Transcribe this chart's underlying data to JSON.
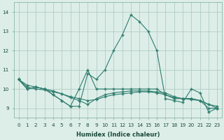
{
  "xlabel": "Humidex (Indice chaleur)",
  "x": [
    0,
    1,
    2,
    3,
    4,
    5,
    6,
    7,
    8,
    9,
    10,
    11,
    12,
    13,
    14,
    15,
    16,
    17,
    18,
    19,
    20,
    21,
    22,
    23
  ],
  "line1": [
    10.5,
    10.0,
    10.1,
    10.0,
    9.7,
    9.4,
    9.1,
    9.1,
    10.8,
    10.5,
    11.0,
    12.0,
    12.8,
    13.85,
    13.5,
    13.0,
    12.0,
    9.5,
    9.4,
    9.3,
    10.0,
    9.8,
    8.8,
    9.0
  ],
  "line2": [
    10.5,
    10.0,
    10.1,
    10.0,
    9.7,
    9.4,
    9.1,
    10.0,
    11.0,
    10.0,
    10.0,
    10.0,
    10.0,
    10.0,
    10.0,
    10.0,
    10.0,
    9.7,
    9.5,
    9.5,
    9.5,
    9.4,
    9.0,
    9.0
  ],
  "line3": [
    10.5,
    10.1,
    10.0,
    9.95,
    9.85,
    9.75,
    9.6,
    9.5,
    9.4,
    9.45,
    9.6,
    9.7,
    9.75,
    9.8,
    9.85,
    9.85,
    9.8,
    9.7,
    9.55,
    9.5,
    9.45,
    9.4,
    9.2,
    9.1
  ],
  "line4": [
    10.5,
    10.2,
    10.1,
    10.0,
    9.9,
    9.75,
    9.55,
    9.4,
    9.2,
    9.5,
    9.7,
    9.8,
    9.85,
    9.9,
    9.9,
    9.9,
    9.85,
    9.8,
    9.6,
    9.5,
    9.5,
    9.4,
    9.2,
    9.0
  ],
  "color": "#2e7d6e",
  "bg_color": "#ddeee8",
  "grid_color": "#b0ccc4",
  "ylim": [
    8.5,
    14.5
  ],
  "yticks": [
    9,
    10,
    11,
    12,
    13,
    14
  ],
  "xticks": [
    0,
    1,
    2,
    3,
    4,
    5,
    6,
    7,
    8,
    9,
    10,
    11,
    12,
    13,
    14,
    15,
    16,
    17,
    18,
    19,
    20,
    21,
    22,
    23
  ],
  "xlabel_fontsize": 6.0,
  "tick_fontsize": 5.2
}
